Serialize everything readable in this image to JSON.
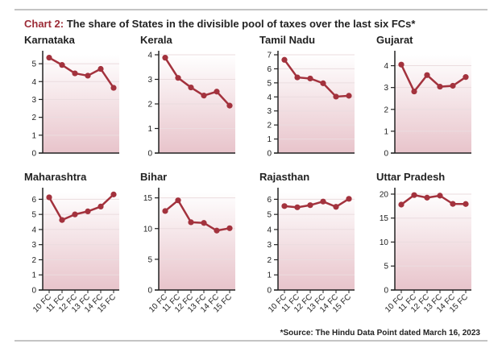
{
  "header": {
    "label": "Chart 2:",
    "text": " The share of States in the divisible pool of taxes over the last six FCs*"
  },
  "footer": {
    "source": "*Source: The Hindu Data Point dated March 16, 2023"
  },
  "colors": {
    "line": "#a3323d",
    "accent": "#9c2b36",
    "fill_bottom": "#e8c4cb"
  },
  "chart_data": [
    {
      "type": "line",
      "title": "Karnataka",
      "categories": [
        "10 FC",
        "11 FC",
        "12 FC",
        "13 FC",
        "14 FC",
        "15 FC"
      ],
      "values": [
        5.34,
        4.93,
        4.46,
        4.33,
        4.71,
        3.65
      ],
      "ylim": [
        0,
        5.5
      ],
      "yticks": [
        0,
        1,
        2,
        3,
        4,
        5
      ],
      "grid": true
    },
    {
      "type": "line",
      "title": "Kerala",
      "categories": [
        "10 FC",
        "11 FC",
        "12 FC",
        "13 FC",
        "14 FC",
        "15 FC"
      ],
      "values": [
        3.88,
        3.06,
        2.67,
        2.34,
        2.5,
        1.93
      ],
      "ylim": [
        0,
        4
      ],
      "yticks": [
        0,
        1,
        2,
        3,
        4
      ],
      "grid": true
    },
    {
      "type": "line",
      "title": "Tamil Nadu",
      "categories": [
        "10 FC",
        "11 FC",
        "12 FC",
        "13 FC",
        "14 FC",
        "15 FC"
      ],
      "values": [
        6.64,
        5.39,
        5.31,
        4.97,
        4.02,
        4.08
      ],
      "ylim": [
        0,
        7
      ],
      "yticks": [
        0,
        1,
        2,
        3,
        4,
        5,
        6,
        7
      ],
      "grid": true
    },
    {
      "type": "line",
      "title": "Gujarat",
      "categories": [
        "10 FC",
        "11 FC",
        "12 FC",
        "13 FC",
        "14 FC",
        "15 FC"
      ],
      "values": [
        4.05,
        2.82,
        3.57,
        3.04,
        3.08,
        3.48
      ],
      "ylim": [
        0,
        4.5
      ],
      "yticks": [
        0,
        1,
        2,
        3,
        4
      ],
      "grid": true
    },
    {
      "type": "line",
      "title": "Maharashtra",
      "categories": [
        "10 FC",
        "11 FC",
        "12 FC",
        "13 FC",
        "14 FC",
        "15 FC"
      ],
      "values": [
        6.13,
        4.63,
        5.0,
        5.2,
        5.52,
        6.32
      ],
      "ylim": [
        0,
        6.5
      ],
      "yticks": [
        0,
        1,
        2,
        3,
        4,
        5,
        6
      ],
      "grid": true
    },
    {
      "type": "line",
      "title": "Bihar",
      "categories": [
        "10 FC",
        "11 FC",
        "12 FC",
        "13 FC",
        "14 FC",
        "15 FC"
      ],
      "values": [
        12.86,
        14.6,
        11.03,
        10.92,
        9.67,
        10.06
      ],
      "ylim": [
        0,
        16
      ],
      "yticks": [
        0,
        5,
        10,
        15
      ],
      "grid": true
    },
    {
      "type": "line",
      "title": "Rajasthan",
      "categories": [
        "10 FC",
        "11 FC",
        "12 FC",
        "13 FC",
        "14 FC",
        "15 FC"
      ],
      "values": [
        5.55,
        5.47,
        5.61,
        5.85,
        5.5,
        6.03
      ],
      "ylim": [
        0,
        6.5
      ],
      "yticks": [
        0,
        1,
        2,
        3,
        4,
        5,
        6
      ],
      "grid": true
    },
    {
      "type": "line",
      "title": "Uttar Pradesh",
      "categories": [
        "10 FC",
        "11 FC",
        "12 FC",
        "13 FC",
        "14 FC",
        "15 FC"
      ],
      "values": [
        17.81,
        19.8,
        19.26,
        19.68,
        17.96,
        17.94
      ],
      "ylim": [
        0,
        20.5
      ],
      "yticks": [
        0,
        5,
        10,
        15,
        20
      ],
      "grid": true
    }
  ]
}
